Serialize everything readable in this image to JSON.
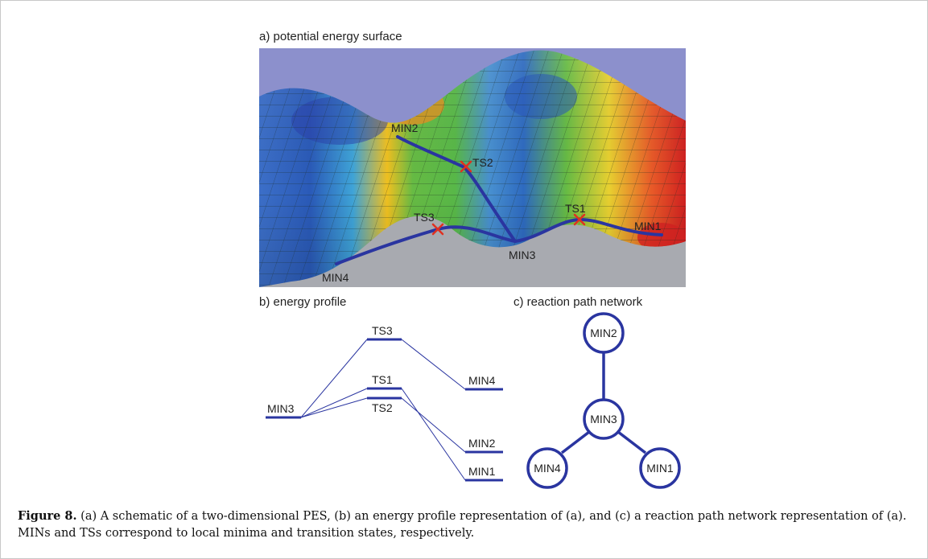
{
  "panels": {
    "a": {
      "title": "a) potential energy surface"
    },
    "b": {
      "title": "b) energy profile"
    },
    "c": {
      "title": "c) reaction path network"
    }
  },
  "pes_labels": {
    "min1": "MIN1",
    "min2": "MIN2",
    "min3": "MIN3",
    "min4": "MIN4",
    "ts1": "TS1",
    "ts2": "TS2",
    "ts3": "TS3"
  },
  "profile_levels": {
    "ts3": "TS3",
    "ts1": "TS1",
    "ts2": "TS2",
    "min3": "MIN3",
    "min4": "MIN4",
    "min2": "MIN2",
    "min1": "MIN1"
  },
  "network_nodes": {
    "min2": "MIN2",
    "min3": "MIN3",
    "min4": "MIN4",
    "min1": "MIN1"
  },
  "caption": {
    "label": "Figure 8.",
    "text": " (a) A schematic of a two-dimensional PES, (b) an energy profile representation of (a), and (c) a reaction path network representation of (a). MINs and TSs correspond to local minima and transition states, respectively."
  },
  "colors": {
    "path": "#2a35a0",
    "ts_marker": "#e03020",
    "node_stroke": "#2a35a0"
  }
}
